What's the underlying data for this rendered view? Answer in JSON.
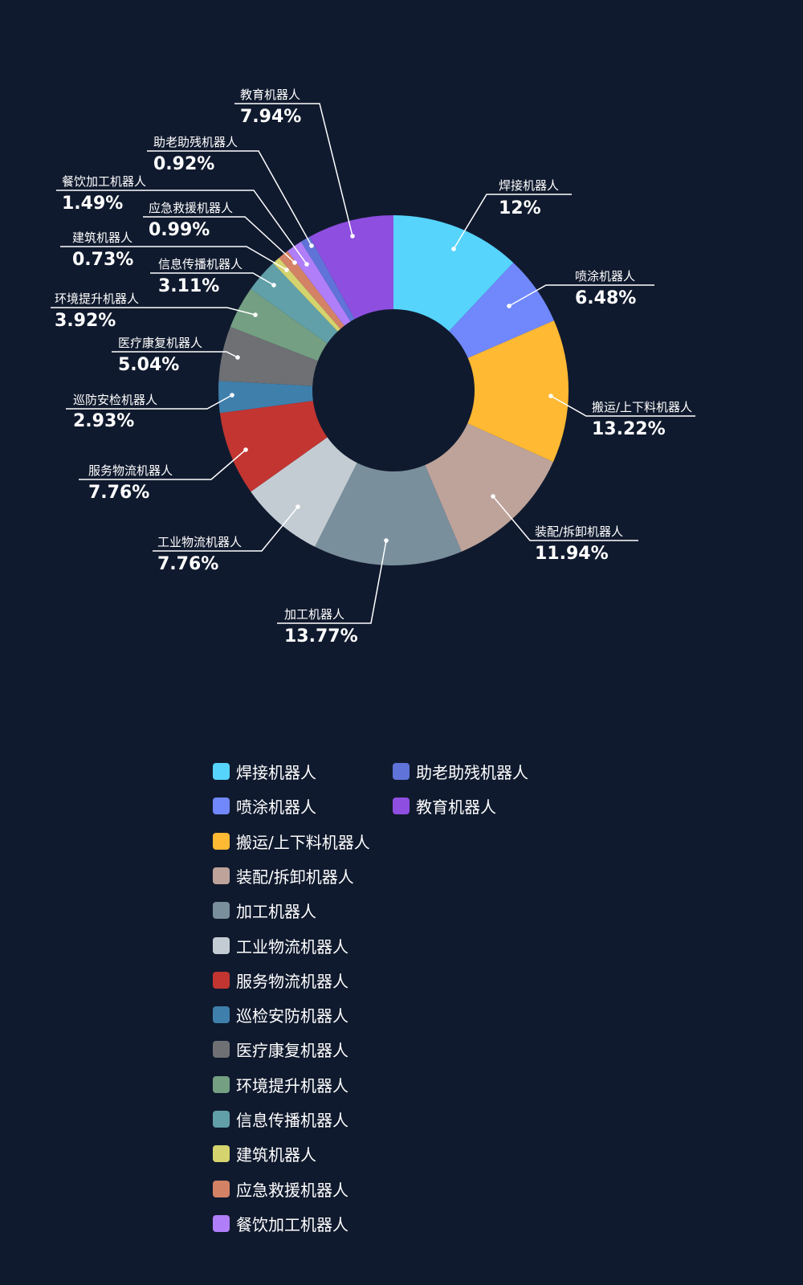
{
  "chart_data": {
    "type": "pie",
    "variant": "donut",
    "legend_position": "bottom",
    "slices": [
      {
        "label": "焊接机器人",
        "legend": "焊接机器人",
        "value": 12,
        "display": "12%",
        "color": "#56d4fc"
      },
      {
        "label": "喷涂机器人",
        "legend": "喷涂机器人",
        "value": 6.48,
        "display": "6.48%",
        "color": "#7088fc"
      },
      {
        "label": "搬运/上下料机器人",
        "legend": "搬运/上下料机器人",
        "value": 13.22,
        "display": "13.22%",
        "color": "#ffb933"
      },
      {
        "label": "装配/拆卸机器人",
        "legend": "装配/拆卸机器人",
        "value": 11.94,
        "display": "11.94%",
        "color": "#bea39a"
      },
      {
        "label": "加工机器人",
        "legend": "加工机器人",
        "value": 13.77,
        "display": "13.77%",
        "color": "#7a8f9c"
      },
      {
        "label": "工业物流机器人",
        "legend": "工业物流机器人",
        "value": 7.76,
        "display": "7.76%",
        "color": "#c4ccd3"
      },
      {
        "label": "服务物流机器人",
        "legend": "服务物流机器人",
        "value": 7.76,
        "display": "7.76%",
        "color": "#c23531"
      },
      {
        "label": "巡防安检机器人",
        "legend": "巡检安防机器人",
        "value": 2.93,
        "display": "2.93%",
        "color": "#3f7fac"
      },
      {
        "label": "医疗康复机器人",
        "legend": "医疗康复机器人",
        "value": 5.04,
        "display": "5.04%",
        "color": "#6e7074"
      },
      {
        "label": "环境提升机器人",
        "legend": "环境提升机器人",
        "value": 3.92,
        "display": "3.92%",
        "color": "#749f83"
      },
      {
        "label": "信息传播机器人",
        "legend": "信息传播机器人",
        "value": 3.11,
        "display": "3.11%",
        "color": "#61a0a8"
      },
      {
        "label": "建筑机器人",
        "legend": "建筑机器人",
        "value": 0.73,
        "display": "0.73%",
        "color": "#d4d36e"
      },
      {
        "label": "应急救援机器人",
        "legend": "应急救援机器人",
        "value": 0.99,
        "display": "0.99%",
        "color": "#d48265"
      },
      {
        "label": "餐饮加工机器人",
        "legend": "餐饮加工机器人",
        "value": 1.49,
        "display": "1.49%",
        "color": "#b07ef8"
      },
      {
        "label": "助老助残机器人",
        "legend": "助老助残机器人",
        "value": 0.92,
        "display": "0.92%",
        "color": "#6073d8"
      },
      {
        "label": "教育机器人",
        "legend": "教育机器人",
        "value": 7.94,
        "display": "7.94%",
        "color": "#8e4ee0"
      }
    ]
  }
}
